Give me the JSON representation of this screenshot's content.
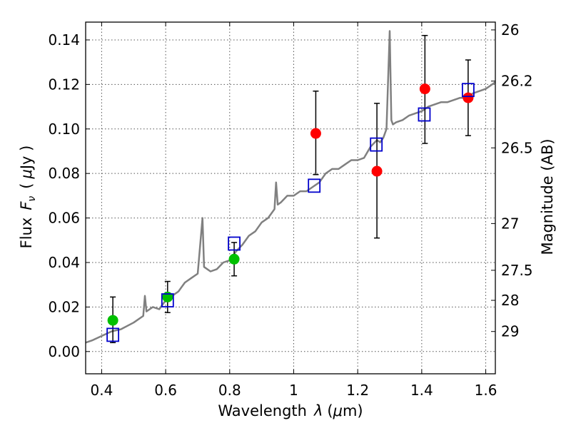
{
  "chart_data": {
    "type": "scatter",
    "xlabel_main": "Wavelength",
    "xlabel_lambda": "λ",
    "xlabel_unit_open": "(",
    "xlabel_mu": "μ",
    "xlabel_unit_close": "m)",
    "ylabel_main": "Flux",
    "ylabel_F": "F",
    "ylabel_nu": "ν",
    "ylabel_unit_open": "(",
    "ylabel_mu": "μ",
    "ylabel_unit_close": "Jy )",
    "y2label": "Magnitude (AB)",
    "xlim": [
      0.35,
      1.63
    ],
    "ylim": [
      -0.01,
      0.148
    ],
    "xticks": [
      0.4,
      0.6,
      0.8,
      1.0,
      1.2,
      1.4,
      1.6
    ],
    "xtick_labels": [
      "0.4",
      "0.6",
      "0.8",
      "1",
      "1.2",
      "1.4",
      "1.6"
    ],
    "yticks": [
      0.0,
      0.02,
      0.04,
      0.06,
      0.08,
      0.1,
      0.12,
      0.14
    ],
    "ytick_labels": [
      "0.00",
      "0.02",
      "0.04",
      "0.06",
      "0.08",
      "0.10",
      "0.12",
      "0.14"
    ],
    "y2_ticks": [
      {
        "flux": 0.1445,
        "label": "26"
      },
      {
        "flux": 0.1215,
        "label": "26.2"
      },
      {
        "flux": 0.0915,
        "label": "26.5"
      },
      {
        "flux": 0.0575,
        "label": "27"
      },
      {
        "flux": 0.0365,
        "label": "27.5"
      },
      {
        "flux": 0.023,
        "label": "28"
      },
      {
        "flux": 0.009,
        "label": "29"
      }
    ],
    "colors": {
      "spectrum": "#808080",
      "green": "#00c000",
      "red": "#ff0000",
      "model": "#0000cc",
      "errorbar": "#000000"
    },
    "series": [
      {
        "name": "observed-green",
        "color": "#00c000",
        "points": [
          {
            "x": 0.435,
            "y": 0.014,
            "ylo": 0.004,
            "yhi": 0.0245
          },
          {
            "x": 0.606,
            "y": 0.0245,
            "ylo": 0.0175,
            "yhi": 0.0315
          },
          {
            "x": 0.814,
            "y": 0.0415,
            "ylo": 0.034,
            "yhi": 0.049
          }
        ]
      },
      {
        "name": "observed-red",
        "color": "#ff0000",
        "points": [
          {
            "x": 1.069,
            "y": 0.098,
            "ylo": 0.0795,
            "yhi": 0.117
          },
          {
            "x": 1.26,
            "y": 0.081,
            "ylo": 0.051,
            "yhi": 0.1115
          },
          {
            "x": 1.41,
            "y": 0.118,
            "ylo": 0.0935,
            "yhi": 0.142
          },
          {
            "x": 1.545,
            "y": 0.114,
            "ylo": 0.097,
            "yhi": 0.131
          }
        ]
      },
      {
        "name": "model-synthetic",
        "color": "#0000cc",
        "points": [
          {
            "x": 0.435,
            "y": 0.0075
          },
          {
            "x": 0.606,
            "y": 0.023
          },
          {
            "x": 0.814,
            "y": 0.0485
          },
          {
            "x": 1.064,
            "y": 0.0745
          },
          {
            "x": 1.258,
            "y": 0.093
          },
          {
            "x": 1.408,
            "y": 0.1065
          },
          {
            "x": 1.545,
            "y": 0.1175
          }
        ]
      }
    ],
    "spectrum": {
      "x": [
        0.35,
        0.37,
        0.4,
        0.43,
        0.46,
        0.5,
        0.53,
        0.535,
        0.54,
        0.56,
        0.58,
        0.6,
        0.62,
        0.64,
        0.66,
        0.68,
        0.7,
        0.715,
        0.72,
        0.74,
        0.76,
        0.78,
        0.8,
        0.82,
        0.84,
        0.86,
        0.88,
        0.9,
        0.92,
        0.94,
        0.945,
        0.95,
        0.96,
        0.98,
        1.0,
        1.02,
        1.04,
        1.06,
        1.08,
        1.1,
        1.12,
        1.14,
        1.16,
        1.18,
        1.2,
        1.22,
        1.24,
        1.26,
        1.27,
        1.28,
        1.29,
        1.3,
        1.305,
        1.31,
        1.32,
        1.34,
        1.36,
        1.38,
        1.4,
        1.42,
        1.44,
        1.46,
        1.48,
        1.5,
        1.52,
        1.54,
        1.56,
        1.58,
        1.6,
        1.63
      ],
      "y": [
        0.004,
        0.005,
        0.007,
        0.009,
        0.01,
        0.013,
        0.016,
        0.025,
        0.018,
        0.02,
        0.019,
        0.023,
        0.025,
        0.027,
        0.031,
        0.033,
        0.035,
        0.06,
        0.038,
        0.036,
        0.037,
        0.04,
        0.041,
        0.045,
        0.048,
        0.052,
        0.054,
        0.058,
        0.06,
        0.064,
        0.076,
        0.066,
        0.067,
        0.07,
        0.07,
        0.072,
        0.072,
        0.074,
        0.076,
        0.08,
        0.082,
        0.082,
        0.084,
        0.086,
        0.086,
        0.087,
        0.092,
        0.095,
        0.094,
        0.096,
        0.1,
        0.144,
        0.104,
        0.102,
        0.103,
        0.104,
        0.106,
        0.107,
        0.108,
        0.11,
        0.111,
        0.112,
        0.112,
        0.113,
        0.114,
        0.114,
        0.116,
        0.117,
        0.118,
        0.121
      ]
    }
  }
}
